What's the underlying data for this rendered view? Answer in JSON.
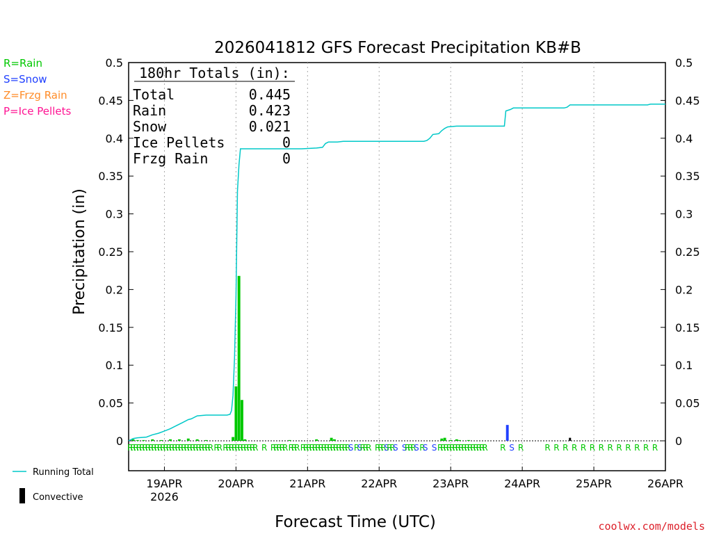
{
  "chart_data": {
    "type": "bar",
    "title": "2026041812 GFS Forecast Precipitation KB#B",
    "xlabel": "Forecast Time (UTC)",
    "ylabel": "Precipitation (in)",
    "credit": "coolwx.com/models",
    "ylim": [
      0,
      0.5
    ],
    "yticks": [
      0,
      0.05,
      0.1,
      0.15,
      0.2,
      0.25,
      0.3,
      0.35,
      0.4,
      0.45,
      0.5
    ],
    "ytick_labels": [
      "0",
      "0.05",
      "0.1",
      "0.15",
      "0.2",
      "0.25",
      "0.3",
      "0.35",
      "0.4",
      "0.45",
      "0.5"
    ],
    "xlim_hours": [
      12,
      192
    ],
    "xticks": [
      {
        "hour": 24,
        "label": "19APR",
        "sublabel": "2026"
      },
      {
        "hour": 48,
        "label": "20APR",
        "sublabel": ""
      },
      {
        "hour": 72,
        "label": "21APR",
        "sublabel": ""
      },
      {
        "hour": 96,
        "label": "22APR",
        "sublabel": ""
      },
      {
        "hour": 120,
        "label": "23APR",
        "sublabel": ""
      },
      {
        "hour": 144,
        "label": "24APR",
        "sublabel": ""
      },
      {
        "hour": 168,
        "label": "25APR",
        "sublabel": ""
      },
      {
        "hour": 192,
        "label": "26APR",
        "sublabel": ""
      }
    ],
    "type_legend": [
      {
        "text": "R=Rain",
        "color": "#00c800"
      },
      {
        "text": "S=Snow",
        "color": "#2040ff"
      },
      {
        "text": "Z=Frzg Rain",
        "color": "#ff8c28"
      },
      {
        "text": "P=Ice Pellets",
        "color": "#ff1493"
      }
    ],
    "totals": {
      "header": "180hr Totals (in):",
      "rows": [
        {
          "label": "Total",
          "value": "0.445"
        },
        {
          "label": "Rain",
          "value": "0.423"
        },
        {
          "label": "Snow",
          "value": "0.021"
        },
        {
          "label": "Ice Pellets",
          "value": "0"
        },
        {
          "label": "Frzg Rain",
          "value": "0"
        }
      ]
    },
    "bottom_legend": [
      {
        "label": "Running Total",
        "symbol": "line",
        "color": "#00c8c8"
      },
      {
        "label": "Convective",
        "symbol": "bar",
        "color": "#000000"
      }
    ],
    "colors": {
      "rain": "#00c800",
      "snow": "#2040ff",
      "running_total": "#00c8c8",
      "convective": "#000000"
    },
    "bars": [
      {
        "hour": 13.5,
        "value": 0.002,
        "type": "rain"
      },
      {
        "hour": 15,
        "value": 0.001,
        "type": "rain"
      },
      {
        "hour": 17,
        "value": 0.001,
        "type": "rain"
      },
      {
        "hour": 20,
        "value": 0.002,
        "type": "rain"
      },
      {
        "hour": 23,
        "value": 0.001,
        "type": "rain"
      },
      {
        "hour": 26,
        "value": 0.002,
        "type": "rain"
      },
      {
        "hour": 29,
        "value": 0.002,
        "type": "rain"
      },
      {
        "hour": 32,
        "value": 0.003,
        "type": "rain"
      },
      {
        "hour": 35,
        "value": 0.002,
        "type": "rain"
      },
      {
        "hour": 38,
        "value": 0.001,
        "type": "rain"
      },
      {
        "hour": 47,
        "value": 0.005,
        "type": "rain"
      },
      {
        "hour": 48,
        "value": 0.072,
        "type": "rain"
      },
      {
        "hour": 49,
        "value": 0.218,
        "type": "rain"
      },
      {
        "hour": 50,
        "value": 0.054,
        "type": "rain"
      },
      {
        "hour": 51,
        "value": 0.002,
        "type": "rain"
      },
      {
        "hour": 66,
        "value": 0.001,
        "type": "rain"
      },
      {
        "hour": 75,
        "value": 0.002,
        "type": "rain"
      },
      {
        "hour": 80,
        "value": 0.004,
        "type": "rain"
      },
      {
        "hour": 81,
        "value": 0.002,
        "type": "rain"
      },
      {
        "hour": 117,
        "value": 0.003,
        "type": "rain"
      },
      {
        "hour": 118,
        "value": 0.004,
        "type": "rain"
      },
      {
        "hour": 120,
        "value": 0.001,
        "type": "rain"
      },
      {
        "hour": 122,
        "value": 0.002,
        "type": "rain"
      },
      {
        "hour": 123,
        "value": 0.001,
        "type": "rain"
      },
      {
        "hour": 126,
        "value": 0.001,
        "type": "rain"
      },
      {
        "hour": 139,
        "value": 0.021,
        "type": "snow"
      },
      {
        "hour": 160,
        "value": 0.004,
        "type": "convective"
      }
    ],
    "running_total": [
      [
        12,
        0.0
      ],
      [
        13.5,
        0.003
      ],
      [
        15,
        0.004
      ],
      [
        18,
        0.005
      ],
      [
        20,
        0.008
      ],
      [
        22,
        0.01
      ],
      [
        24,
        0.013
      ],
      [
        26,
        0.016
      ],
      [
        28,
        0.02
      ],
      [
        30,
        0.024
      ],
      [
        32,
        0.028
      ],
      [
        33,
        0.029
      ],
      [
        35,
        0.033
      ],
      [
        38,
        0.034
      ],
      [
        40,
        0.034
      ],
      [
        45,
        0.034
      ],
      [
        46,
        0.035
      ],
      [
        46.5,
        0.04
      ],
      [
        47,
        0.06
      ],
      [
        47.5,
        0.11
      ],
      [
        48,
        0.19
      ],
      [
        48.5,
        0.33
      ],
      [
        49,
        0.365
      ],
      [
        49.5,
        0.386
      ],
      [
        55,
        0.386
      ],
      [
        62,
        0.386
      ],
      [
        70,
        0.386
      ],
      [
        75,
        0.387
      ],
      [
        77,
        0.388
      ],
      [
        78,
        0.393
      ],
      [
        79,
        0.395
      ],
      [
        82,
        0.395
      ],
      [
        84,
        0.396
      ],
      [
        96,
        0.396
      ],
      [
        111,
        0.396
      ],
      [
        112,
        0.397
      ],
      [
        113,
        0.4
      ],
      [
        114,
        0.405
      ],
      [
        116,
        0.406
      ],
      [
        117,
        0.41
      ],
      [
        118,
        0.413
      ],
      [
        119,
        0.415
      ],
      [
        122,
        0.416
      ],
      [
        132,
        0.416
      ],
      [
        138,
        0.416
      ],
      [
        138.5,
        0.436
      ],
      [
        140,
        0.438
      ],
      [
        141,
        0.44
      ],
      [
        149,
        0.44
      ],
      [
        158,
        0.44
      ],
      [
        159,
        0.441
      ],
      [
        160,
        0.444
      ],
      [
        165,
        0.444
      ],
      [
        180,
        0.444
      ],
      [
        186,
        0.444
      ],
      [
        187,
        0.445
      ],
      [
        192,
        0.445
      ]
    ],
    "precip_type_codes": [
      {
        "hour": 12.5,
        "code": "R"
      },
      {
        "hour": 13.5,
        "code": "R"
      },
      {
        "hour": 14.5,
        "code": "R"
      },
      {
        "hour": 15.5,
        "code": "R"
      },
      {
        "hour": 16.5,
        "code": "R"
      },
      {
        "hour": 17.5,
        "code": "R"
      },
      {
        "hour": 18.5,
        "code": "R"
      },
      {
        "hour": 19.5,
        "code": "R"
      },
      {
        "hour": 20.5,
        "code": "R"
      },
      {
        "hour": 21.5,
        "code": "R"
      },
      {
        "hour": 22.5,
        "code": "R"
      },
      {
        "hour": 23.5,
        "code": "R"
      },
      {
        "hour": 24.5,
        "code": "R"
      },
      {
        "hour": 25.5,
        "code": "R"
      },
      {
        "hour": 26.5,
        "code": "R"
      },
      {
        "hour": 27.5,
        "code": "R"
      },
      {
        "hour": 28.5,
        "code": "R"
      },
      {
        "hour": 29.5,
        "code": "R"
      },
      {
        "hour": 30.5,
        "code": "R"
      },
      {
        "hour": 31.5,
        "code": "R"
      },
      {
        "hour": 32.5,
        "code": "R"
      },
      {
        "hour": 33.5,
        "code": "R"
      },
      {
        "hour": 34.5,
        "code": "R"
      },
      {
        "hour": 35.5,
        "code": "R"
      },
      {
        "hour": 36.5,
        "code": "R"
      },
      {
        "hour": 37.5,
        "code": "R"
      },
      {
        "hour": 38.5,
        "code": "R"
      },
      {
        "hour": 39.5,
        "code": "R"
      },
      {
        "hour": 41.5,
        "code": "R"
      },
      {
        "hour": 42.5,
        "code": "R"
      },
      {
        "hour": 44.5,
        "code": "R"
      },
      {
        "hour": 45.5,
        "code": "R"
      },
      {
        "hour": 46.5,
        "code": "R"
      },
      {
        "hour": 47.5,
        "code": "R"
      },
      {
        "hour": 48.5,
        "code": "R"
      },
      {
        "hour": 49.5,
        "code": "R"
      },
      {
        "hour": 50.5,
        "code": "R"
      },
      {
        "hour": 51.5,
        "code": "R"
      },
      {
        "hour": 52.5,
        "code": "R"
      },
      {
        "hour": 53.5,
        "code": "R"
      },
      {
        "hour": 54.5,
        "code": "R"
      },
      {
        "hour": 57.5,
        "code": "R"
      },
      {
        "hour": 60.5,
        "code": "R"
      },
      {
        "hour": 61.5,
        "code": "R"
      },
      {
        "hour": 62.5,
        "code": "R"
      },
      {
        "hour": 63.5,
        "code": "R"
      },
      {
        "hour": 64.5,
        "code": "R"
      },
      {
        "hour": 66.5,
        "code": "R"
      },
      {
        "hour": 67.5,
        "code": "R"
      },
      {
        "hour": 68.5,
        "code": "R"
      },
      {
        "hour": 70.5,
        "code": "R"
      },
      {
        "hour": 71.5,
        "code": "R"
      },
      {
        "hour": 72.5,
        "code": "R"
      },
      {
        "hour": 73.5,
        "code": "R"
      },
      {
        "hour": 74.5,
        "code": "R"
      },
      {
        "hour": 75.5,
        "code": "R"
      },
      {
        "hour": 76.5,
        "code": "R"
      },
      {
        "hour": 77.5,
        "code": "R"
      },
      {
        "hour": 78.5,
        "code": "R"
      },
      {
        "hour": 79.5,
        "code": "R"
      },
      {
        "hour": 80.5,
        "code": "R"
      },
      {
        "hour": 81.5,
        "code": "R"
      },
      {
        "hour": 82.5,
        "code": "R"
      },
      {
        "hour": 83.5,
        "code": "R"
      },
      {
        "hour": 84.5,
        "code": "R"
      },
      {
        "hour": 85.5,
        "code": "R"
      },
      {
        "hour": 86.5,
        "code": "S"
      },
      {
        "hour": 88.5,
        "code": "R"
      },
      {
        "hour": 89.5,
        "code": "S"
      },
      {
        "hour": 90.5,
        "code": "R"
      },
      {
        "hour": 91.5,
        "code": "R"
      },
      {
        "hour": 92.5,
        "code": "R"
      },
      {
        "hour": 95.5,
        "code": "R"
      },
      {
        "hour": 96.5,
        "code": "R"
      },
      {
        "hour": 97.5,
        "code": "R"
      },
      {
        "hour": 98.5,
        "code": "S"
      },
      {
        "hour": 99.5,
        "code": "R"
      },
      {
        "hour": 100.5,
        "code": "R"
      },
      {
        "hour": 101.5,
        "code": "S"
      },
      {
        "hour": 104.5,
        "code": "S"
      },
      {
        "hour": 105.5,
        "code": "R"
      },
      {
        "hour": 106.5,
        "code": "R"
      },
      {
        "hour": 107.5,
        "code": "R"
      },
      {
        "hour": 108.5,
        "code": "S"
      },
      {
        "hour": 110.5,
        "code": "R"
      },
      {
        "hour": 111.5,
        "code": "S"
      },
      {
        "hour": 114.5,
        "code": "S"
      },
      {
        "hour": 116.5,
        "code": "R"
      },
      {
        "hour": 117.5,
        "code": "R"
      },
      {
        "hour": 118.5,
        "code": "R"
      },
      {
        "hour": 119.5,
        "code": "R"
      },
      {
        "hour": 120.5,
        "code": "R"
      },
      {
        "hour": 121.5,
        "code": "R"
      },
      {
        "hour": 122.5,
        "code": "R"
      },
      {
        "hour": 123.5,
        "code": "R"
      },
      {
        "hour": 124.5,
        "code": "R"
      },
      {
        "hour": 125.5,
        "code": "R"
      },
      {
        "hour": 126.5,
        "code": "R"
      },
      {
        "hour": 127.5,
        "code": "R"
      },
      {
        "hour": 128.5,
        "code": "R"
      },
      {
        "hour": 129.5,
        "code": "R"
      },
      {
        "hour": 130.5,
        "code": "R"
      },
      {
        "hour": 131.5,
        "code": "R"
      },
      {
        "hour": 137.5,
        "code": "R"
      },
      {
        "hour": 140.5,
        "code": "S"
      },
      {
        "hour": 143.5,
        "code": "R"
      },
      {
        "hour": 152.5,
        "code": "R"
      },
      {
        "hour": 155.5,
        "code": "R"
      },
      {
        "hour": 158.5,
        "code": "R"
      },
      {
        "hour": 161.5,
        "code": "R"
      },
      {
        "hour": 164.5,
        "code": "R"
      },
      {
        "hour": 167.5,
        "code": "R"
      },
      {
        "hour": 170.5,
        "code": "R"
      },
      {
        "hour": 173.5,
        "code": "R"
      },
      {
        "hour": 176.5,
        "code": "R"
      },
      {
        "hour": 179.5,
        "code": "R"
      },
      {
        "hour": 182.5,
        "code": "R"
      },
      {
        "hour": 185.5,
        "code": "R"
      },
      {
        "hour": 188.5,
        "code": "R"
      }
    ]
  }
}
